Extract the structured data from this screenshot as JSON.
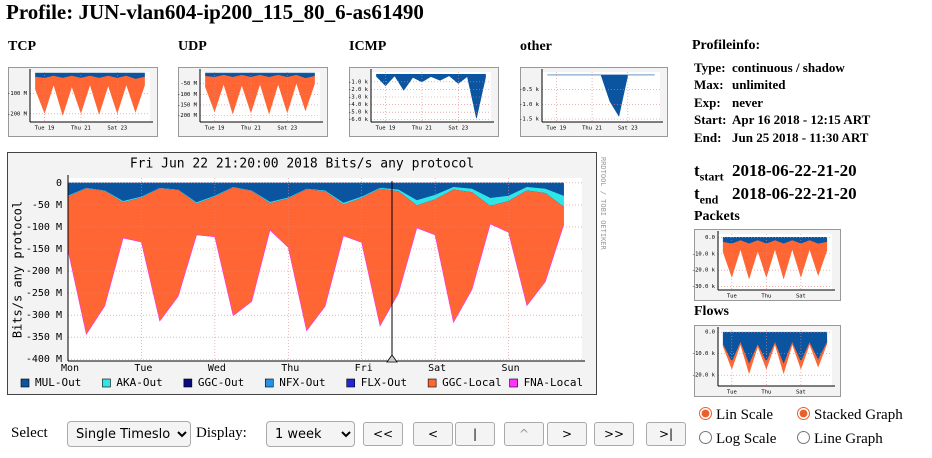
{
  "header": {
    "title": "Profile: JUN-vlan604-ip200_115_80_6-as61490"
  },
  "profileinfo": {
    "title": "Profileinfo:",
    "rows": [
      [
        "Type:",
        "continuous / shadow"
      ],
      [
        "Max:",
        "unlimited"
      ],
      [
        "Exp:",
        "never"
      ],
      [
        "Start:",
        "Apr 16 2018 - 12:15 ART"
      ],
      [
        "End:",
        "Jun 25 2018 - 11:30 ART"
      ]
    ]
  },
  "timeslot": {
    "start": {
      "t": "t",
      "sub": "start",
      "value": "2018-06-22-21-20"
    },
    "end": {
      "t": "t",
      "sub": "end",
      "value": "2018-06-22-21-20"
    }
  },
  "controls": {
    "select_label": "Select",
    "select_value": "Single Timeslot",
    "display_label": "Display:",
    "display_value": "1 week",
    "buttons": [
      "<<",
      "<",
      "|",
      "^",
      ">",
      ">>",
      ">|"
    ],
    "radios": [
      "Lin Scale",
      "Stacked Graph",
      "Log Scale",
      "Line Graph"
    ]
  },
  "chart_data": [
    {
      "type": "area",
      "title": "Fri Jun 22 21:20:00 2018 Bits/s any protocol",
      "ylabel": "Bits/s any protocol",
      "watermark": "RRDTOOL / TOBI OETIKER",
      "xlim": [
        0,
        7
      ],
      "xticks": [
        {
          "value": 0,
          "label": "Mon"
        },
        {
          "value": 1,
          "label": "Tue"
        },
        {
          "value": 2,
          "label": "Wed"
        },
        {
          "value": 3,
          "label": "Thu"
        },
        {
          "value": 4,
          "label": "Fri"
        },
        {
          "value": 5,
          "label": "Sat"
        },
        {
          "value": 6,
          "label": "Sun"
        }
      ],
      "ylim": [
        -404,
        11
      ],
      "yticks": [
        0,
        {
          "value": -50,
          "label": "-50 M"
        },
        {
          "value": -100,
          "label": "-100 M"
        },
        {
          "value": -150,
          "label": "-150 M"
        },
        {
          "value": -200,
          "label": "-200 M"
        },
        {
          "value": -250,
          "label": "-250 M"
        },
        {
          "value": -300,
          "label": "-300 M"
        },
        {
          "value": -350,
          "label": "-350 M"
        },
        {
          "value": -400,
          "label": "-400 M"
        }
      ],
      "grid": true,
      "legend": "bottom",
      "x": [
        0,
        0.25,
        0.5,
        0.75,
        1,
        1.25,
        1.5,
        1.75,
        2,
        2.25,
        2.5,
        2.75,
        3,
        3.25,
        3.5,
        3.75,
        4,
        4.25,
        4.5,
        4.75,
        5,
        5.25,
        5.5,
        5.75,
        6,
        6.25,
        6.5,
        6.75
      ],
      "series": [
        {
          "name": "MUL-Out",
          "color": "#0b55a0",
          "values": [
            -30,
            -12,
            -18,
            -42,
            -32,
            -12,
            -16,
            -45,
            -30,
            -10,
            -18,
            -44,
            -34,
            -14,
            -18,
            -46,
            -32,
            -12,
            -16,
            -40,
            -28,
            -10,
            -14,
            -35,
            -30,
            -10,
            -14,
            -30
          ]
        },
        {
          "name": "AKA-Out",
          "color": "#2ee6e6",
          "values": [
            -2,
            -1,
            -1,
            -3,
            -2,
            -1,
            -1,
            -3,
            -2,
            -1,
            -1,
            -3,
            -2,
            -1,
            -2,
            -4,
            -3,
            -2,
            -4,
            -12,
            -10,
            -6,
            -8,
            -18,
            -12,
            -8,
            -10,
            -25
          ]
        },
        {
          "name": "GGC-Out",
          "color": "#0a0a80",
          "values": [
            0,
            0,
            0,
            0,
            0,
            0,
            0,
            0,
            0,
            0,
            0,
            0,
            0,
            0,
            0,
            0,
            0,
            0,
            0,
            0,
            0,
            0,
            0,
            0,
            0,
            0,
            0,
            0
          ]
        },
        {
          "name": "NFX-Out",
          "color": "#2592e6",
          "values": [
            0,
            0,
            0,
            0,
            0,
            0,
            0,
            0,
            0,
            0,
            0,
            0,
            0,
            0,
            0,
            0,
            0,
            0,
            0,
            0,
            0,
            0,
            0,
            0,
            0,
            0,
            0,
            0
          ]
        },
        {
          "name": "FLX-Out",
          "color": "#2424d8",
          "values": [
            0,
            0,
            0,
            0,
            0,
            0,
            0,
            0,
            0,
            0,
            0,
            0,
            0,
            0,
            0,
            0,
            0,
            0,
            0,
            0,
            0,
            0,
            0,
            0,
            0,
            0,
            0,
            0
          ]
        },
        {
          "name": "GGC-Local",
          "color": "#ff6633",
          "values": [
            -120,
            -330,
            -260,
            -80,
            -100,
            -300,
            -240,
            -70,
            -90,
            -290,
            -250,
            -60,
            -110,
            -320,
            -260,
            -70,
            -100,
            -310,
            -230,
            -50,
            -80,
            -300,
            -220,
            -40,
            -70,
            -260,
            -200,
            -40
          ]
        },
        {
          "name": "FNA-Local",
          "color": "#ff33ff",
          "values": [
            0,
            0,
            0,
            0,
            0,
            0,
            0,
            0,
            0,
            0,
            0,
            0,
            0,
            0,
            0,
            0,
            0,
            0,
            0,
            0,
            0,
            0,
            0,
            0,
            0,
            0,
            0,
            0
          ]
        }
      ]
    },
    {
      "type": "area",
      "title": "TCP",
      "xlim": [
        2.2,
        8.8
      ],
      "xticks": [
        {
          "value": 3,
          "label": "Tue 19"
        },
        {
          "value": 5,
          "label": "Thu 21"
        },
        {
          "value": 7,
          "label": "Sat 23"
        }
      ],
      "ylim": [
        -240,
        5
      ],
      "yticks": [
        {
          "value": -100,
          "label": "-100 M"
        },
        {
          "value": -200,
          "label": "-200 M"
        }
      ],
      "grid": true,
      "x": [
        2.5,
        3,
        3.5,
        4,
        4.5,
        5,
        5.5,
        6,
        6.5,
        7,
        7.5,
        8,
        8.5
      ],
      "series": [
        {
          "color": "#0b55a0",
          "values": [
            -20,
            -25,
            -15,
            -25,
            -15,
            -25,
            -15,
            -25,
            -15,
            -25,
            -15,
            -30,
            -20
          ]
        },
        {
          "color": "#ff6633",
          "values": [
            -60,
            -170,
            -40,
            -180,
            -50,
            -170,
            -40,
            -175,
            -45,
            -170,
            -40,
            -160,
            -40
          ]
        }
      ]
    },
    {
      "type": "area",
      "title": "UDP",
      "xlim": [
        2.2,
        8.8
      ],
      "xticks": [
        {
          "value": 3,
          "label": "Tue 19"
        },
        {
          "value": 5,
          "label": "Thu 21"
        },
        {
          "value": 7,
          "label": "Sat 23"
        }
      ],
      "ylim": [
        -230,
        5
      ],
      "yticks": [
        {
          "value": -50,
          "label": "-50 M"
        },
        {
          "value": -100,
          "label": "-100 M"
        },
        {
          "value": -150,
          "label": "-150 M"
        },
        {
          "value": -200,
          "label": "-200 M"
        }
      ],
      "grid": true,
      "x": [
        2.5,
        3,
        3.5,
        4,
        4.5,
        5,
        5.5,
        6,
        6.5,
        7,
        7.5,
        8,
        8.5
      ],
      "series": [
        {
          "color": "#0b55a0",
          "values": [
            -15,
            -20,
            -10,
            -20,
            -10,
            -20,
            -10,
            -20,
            -10,
            -20,
            -10,
            -25,
            -15
          ]
        },
        {
          "color": "#ff6633",
          "values": [
            -50,
            -160,
            -40,
            -170,
            -45,
            -165,
            -40,
            -170,
            -40,
            -165,
            -35,
            -150,
            -35
          ]
        }
      ]
    },
    {
      "type": "area",
      "title": "ICMP",
      "xlim": [
        2.2,
        8.8
      ],
      "xticks": [
        {
          "value": 3,
          "label": "Tue 19"
        },
        {
          "value": 5,
          "label": "Thu 21"
        },
        {
          "value": 7,
          "label": "Sat 23"
        }
      ],
      "ylim": [
        -6.3,
        0.3
      ],
      "yticks": [
        {
          "value": -1,
          "label": "-1.0 k"
        },
        {
          "value": -2,
          "label": "-2.0 k"
        },
        {
          "value": -3,
          "label": "-3.0 k"
        },
        {
          "value": -4,
          "label": "-4.0 k"
        },
        {
          "value": -5,
          "label": "-5.0 k"
        },
        {
          "value": -6,
          "label": "-6.0 k"
        }
      ],
      "grid": true,
      "x": [
        2.5,
        3,
        3.5,
        4,
        4.5,
        5,
        5.5,
        6,
        6.5,
        7,
        7.5,
        8,
        8.5
      ],
      "series": [
        {
          "color": "#0b55a0",
          "values": [
            -0.3,
            -1.5,
            -0.2,
            -2.1,
            -0.4,
            -1,
            -0.3,
            -0.8,
            -0.2,
            -1.2,
            -0.3,
            -5.8,
            -0.4
          ]
        }
      ]
    },
    {
      "type": "area",
      "title": "other",
      "xlim": [
        2.2,
        8.8
      ],
      "xticks": [
        {
          "value": 3,
          "label": "Tue 19"
        },
        {
          "value": 5,
          "label": "Thu 21"
        },
        {
          "value": 7,
          "label": "Sat 23"
        }
      ],
      "ylim": [
        -1.6,
        0.1
      ],
      "yticks": [
        {
          "value": -0.5,
          "label": "-0.5 k"
        },
        {
          "value": -1,
          "label": "-1.0 k"
        },
        {
          "value": -1.5,
          "label": "-1.5 k"
        }
      ],
      "grid": true,
      "x": [
        2.5,
        3,
        3.5,
        4,
        4.5,
        5,
        5.5,
        6,
        6.5,
        7,
        7.5,
        8,
        8.5
      ],
      "series": [
        {
          "color": "#0b55a0",
          "values": [
            0,
            0,
            0,
            0,
            0,
            0,
            0,
            -0.9,
            -1.4,
            0,
            0,
            0,
            0
          ]
        }
      ]
    },
    {
      "type": "area",
      "title": "Packets",
      "xlim": [
        2.2,
        8.8
      ],
      "xticks": [
        {
          "value": 3,
          "label": "Tue"
        },
        {
          "value": 5,
          "label": "Thu"
        },
        {
          "value": 7,
          "label": "Sat"
        }
      ],
      "ylim": [
        -32,
        2
      ],
      "yticks": [
        {
          "value": 0,
          "label": "0.0"
        },
        {
          "value": -10,
          "label": "-10.0 k"
        },
        {
          "value": -20,
          "label": "-20.0 k"
        },
        {
          "value": -30,
          "label": "-30.0 k"
        }
      ],
      "grid": true,
      "x": [
        2.5,
        3,
        3.5,
        4,
        4.5,
        5,
        5.5,
        6,
        6.5,
        7,
        7.5,
        8,
        8.5
      ],
      "series": [
        {
          "color": "#0b55a0",
          "values": [
            -3,
            -4,
            -2,
            -4,
            -2,
            -4,
            -2,
            -4,
            -2,
            -4,
            -2,
            -4,
            -3
          ]
        },
        {
          "color": "#ff6633",
          "values": [
            -6,
            -20,
            -5,
            -21,
            -6,
            -20,
            -5,
            -21,
            -5,
            -20,
            -5,
            -19,
            -5
          ]
        }
      ]
    },
    {
      "type": "area",
      "title": "Flows",
      "xlim": [
        2.2,
        8.8
      ],
      "xticks": [
        {
          "value": 3,
          "label": "Tue"
        },
        {
          "value": 5,
          "label": "Thu"
        },
        {
          "value": 7,
          "label": "Sat"
        }
      ],
      "ylim": [
        -25,
        1
      ],
      "yticks": [
        {
          "value": 0,
          "label": "0.0"
        },
        {
          "value": -10,
          "label": "-10.0 k"
        },
        {
          "value": -20,
          "label": "-20.0 k"
        }
      ],
      "grid": true,
      "x": [
        2.5,
        3,
        3.5,
        4,
        4.5,
        5,
        5.5,
        6,
        6.5,
        7,
        7.5,
        8,
        8.5
      ],
      "series": [
        {
          "color": "#0b55a0",
          "values": [
            -6,
            -14,
            -5,
            -15,
            -6,
            -14,
            -5,
            -15,
            -5,
            -14,
            -5,
            -13,
            -5
          ]
        },
        {
          "color": "#ff6633",
          "values": [
            -0.5,
            -3,
            -0.5,
            -4,
            -0.5,
            -3,
            -0.5,
            -4,
            -0.5,
            -3,
            -0.5,
            -3,
            -0.5
          ]
        }
      ]
    }
  ]
}
